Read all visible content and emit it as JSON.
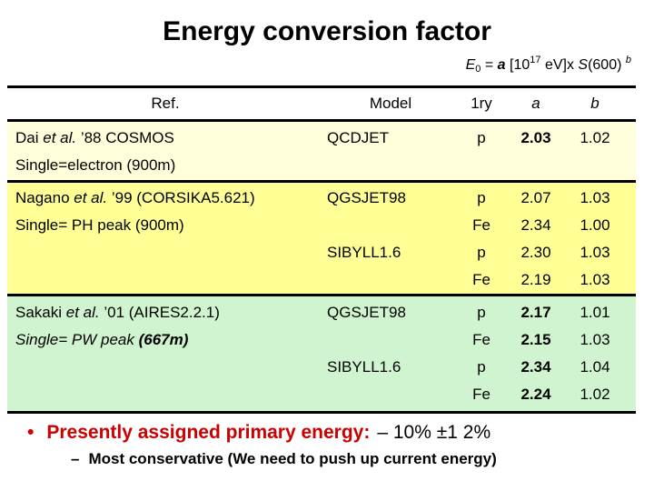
{
  "title": "Energy conversion factor",
  "formula": {
    "E": "E",
    "zero": "0",
    "eq": " = ",
    "a": "a",
    "open": " [10",
    "exp": "17",
    "unit": " eV]x ",
    "S": "S",
    "arg": "(600) ",
    "bexp": "b"
  },
  "table": {
    "headers": [
      "Ref.",
      "Model",
      "1ry",
      "a",
      "b"
    ],
    "groups": [
      {
        "rows": [
          {
            "ref_pre": "Dai ",
            "ref_it": "et al.",
            "ref_post": " ’88 COSMOS",
            "model": "QCDJET",
            "pry": "p",
            "a": "2.03",
            "b": "1.02"
          },
          {
            "ref_pre": "Single=electron (900m)",
            "ref_it": "",
            "ref_post": "",
            "model": "",
            "pry": "",
            "a": "",
            "b": ""
          }
        ]
      },
      {
        "rows": [
          {
            "ref_pre": "Nagano ",
            "ref_it": "et al.",
            "ref_post": " ’99 (CORSIKA5.621)",
            "model": "QGSJET98",
            "pry": "p",
            "a": "2.07",
            "b": "1.03"
          },
          {
            "ref_pre": "Single= PH peak (900m)",
            "ref_it": "",
            "ref_post": "",
            "model": "",
            "pry": "Fe",
            "a": "2.34",
            "b": "1.00"
          },
          {
            "ref_pre": "",
            "ref_it": "",
            "ref_post": "",
            "model": "SIBYLL1.6",
            "pry": "p",
            "a": "2.30",
            "b": "1.03"
          },
          {
            "ref_pre": "",
            "ref_it": "",
            "ref_post": "",
            "model": "",
            "pry": "Fe",
            "a": "2.19",
            "b": "1.03"
          }
        ]
      },
      {
        "rows": [
          {
            "ref_pre": "Sakaki ",
            "ref_it": "et al.",
            "ref_post": " ’01 (AIRES2.2.1)",
            "model": "QGSJET98",
            "pry": "p",
            "a": "2.17",
            "b": "1.01"
          },
          {
            "ref_pre": "Single= PW peak ",
            "ref_it": "(667m)",
            "ref_post": "",
            "model": "",
            "pry": "Fe",
            "a": "2.15",
            "b": "1.03"
          },
          {
            "ref_pre": "",
            "ref_it": "",
            "ref_post": "",
            "model": "SIBYLL1.6",
            "pry": "p",
            "a": "2.34",
            "b": "1.04"
          },
          {
            "ref_pre": "",
            "ref_it": "",
            "ref_post": "",
            "model": "",
            "pry": "Fe",
            "a": "2.24",
            "b": "1.02"
          }
        ]
      }
    ]
  },
  "notes": {
    "bullet": "•",
    "main_red": "Presently assigned primary energy:",
    "main_black": "– 10% ±1 2%",
    "sub_dash": "–",
    "sub_text": "Most conservative (We need to push up current energy)"
  },
  "colors": {
    "group1_bg": "#ffffdc",
    "group2_bg": "#ffff96",
    "group3_bg": "#cff4cf",
    "accent_red": "#cc0000",
    "rule_black": "#000000"
  }
}
